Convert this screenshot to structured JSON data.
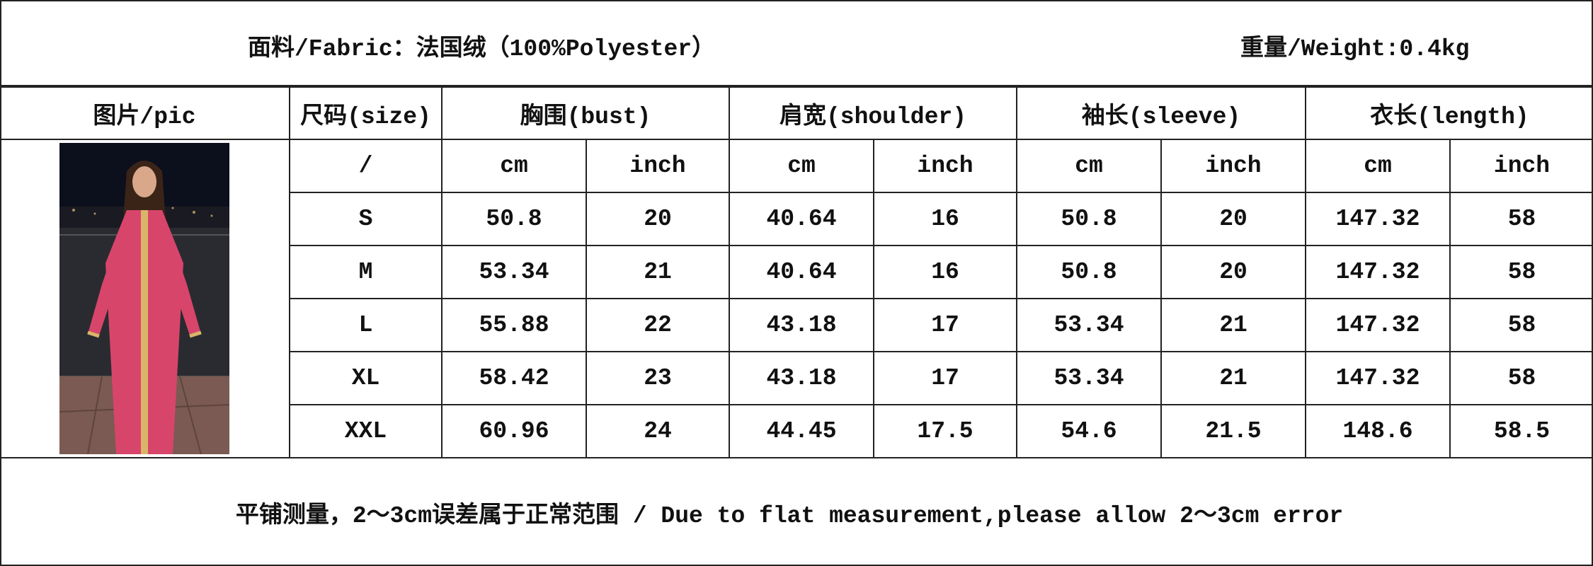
{
  "header": {
    "fabric": "面料/Fabric：法国绒（100%Polyester）",
    "weight": "重量/Weight:0.4kg"
  },
  "table": {
    "columns": [
      "图片/pic",
      "尺码(size)",
      "胸围(bust)",
      "肩宽(shoulder)",
      "袖长(sleeve)",
      "衣长(length)"
    ],
    "units": [
      "/",
      "cm",
      "inch",
      "cm",
      "inch",
      "cm",
      "inch",
      "cm",
      "inch"
    ],
    "rows": [
      [
        "S",
        "50.8",
        "20",
        "40.64",
        "16",
        "50.8",
        "20",
        "147.32",
        "58"
      ],
      [
        "M",
        "53.34",
        "21",
        "40.64",
        "16",
        "50.8",
        "20",
        "147.32",
        "58"
      ],
      [
        "L",
        "55.88",
        "22",
        "43.18",
        "17",
        "53.34",
        "21",
        "147.32",
        "58"
      ],
      [
        "XL",
        "58.42",
        "23",
        "43.18",
        "17",
        "53.34",
        "21",
        "147.32",
        "58"
      ],
      [
        "XXL",
        "60.96",
        "24",
        "44.45",
        "17.5",
        "54.6",
        "21.5",
        "148.6",
        "58.5"
      ]
    ]
  },
  "footer": "平铺测量，2～3cm误差属于正常范围 / Due to flat measurement,please allow 2～3cm error",
  "colors": {
    "dress": "#d8456b",
    "trim": "#d9b56a",
    "background": "#1a1a22"
  }
}
